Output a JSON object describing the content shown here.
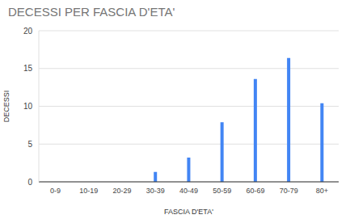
{
  "chart_data": {
    "type": "bar",
    "title": "DECESSI PER FASCIA D'ETA'",
    "x_label": "FASCIA D'ETA'",
    "y_label": "DECESSI",
    "categories": [
      "0-9",
      "10-19",
      "20-29",
      "30-39",
      "40-49",
      "50-59",
      "60-69",
      "70-79",
      "80+"
    ],
    "values": [
      0,
      0,
      0,
      1.3,
      3.2,
      7.9,
      13.6,
      16.4,
      10.4
    ],
    "color": "#4285f4",
    "ylim": [
      0,
      20
    ],
    "yticks": [
      0,
      5,
      10,
      15,
      20
    ],
    "grid": true
  }
}
